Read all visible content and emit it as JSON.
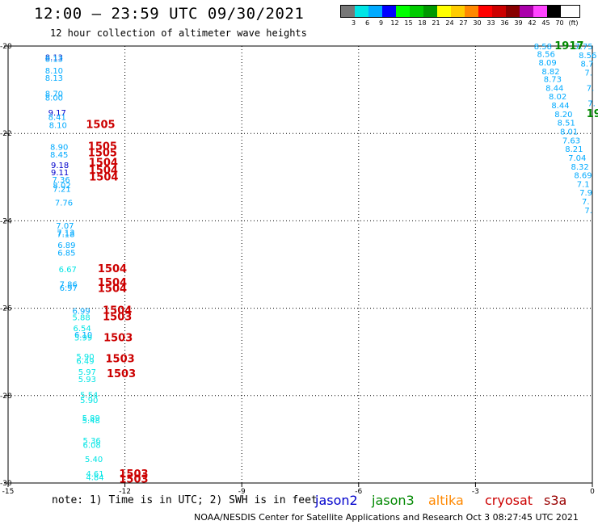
{
  "header": {
    "title": "12:00 – 23:59 UTC 09/30/2021",
    "subtitle": "12 hour collection of altimeter wave heights"
  },
  "legend": {
    "unit": "(ft)",
    "labels": [
      "3",
      "6",
      "9",
      "12",
      "15",
      "18",
      "21",
      "24",
      "27",
      "30",
      "33",
      "36",
      "39",
      "42",
      "45",
      "70"
    ],
    "colors": [
      "#777777",
      "#00e5e5",
      "#00aaff",
      "#0000ff",
      "#00ff00",
      "#00cc00",
      "#009900",
      "#ffff00",
      "#ffcc00",
      "#ff8800",
      "#ff0000",
      "#cc0000",
      "#880000",
      "#aa00aa",
      "#ff44ff",
      "#000000"
    ]
  },
  "axes": {
    "lon_labels": [
      "-15",
      "-12",
      "-9",
      "-6",
      "-3",
      "0"
    ],
    "lat_labels": [
      "-20",
      "-22",
      "-24",
      "-26",
      "-28",
      "-30"
    ]
  },
  "footer": {
    "note": "note:  1) Time is in UTC; 2) SWH is in feet",
    "credit": "NOAA/NESDIS Center for Satellite Applications and Research    Oct  3 08:27:45 UTC 2021"
  },
  "satellites": [
    {
      "name": "jason2",
      "color": "#0000cc"
    },
    {
      "name": "jason3",
      "color": "#008800"
    },
    {
      "name": "altika",
      "color": "#ff8800"
    },
    {
      "name": "cryosat",
      "color": "#cc0000"
    },
    {
      "name": "s3a",
      "color": "#990000"
    }
  ],
  "observations": {
    "track_left": [
      {
        "v": "8.13",
        "lat": -20.25,
        "lon": -14.05,
        "c": "#0033cc"
      },
      {
        "v": "8.13",
        "lat": -20.29,
        "lon": -14.05,
        "c": "#00aaff"
      },
      {
        "v": "8.10",
        "lat": -20.55,
        "lon": -14.05,
        "c": "#00aaff"
      },
      {
        "v": "8.13",
        "lat": -20.72,
        "lon": -14.05,
        "c": "#00aaff"
      },
      {
        "v": "8.70",
        "lat": -21.08,
        "lon": -14.05,
        "c": "#00aaff"
      },
      {
        "v": "8.00",
        "lat": -21.17,
        "lon": -14.05,
        "c": "#00aaff"
      },
      {
        "v": "9.17",
        "lat": -21.52,
        "lon": -13.97,
        "c": "#0000cc"
      },
      {
        "v": "8.41",
        "lat": -21.62,
        "lon": -13.97,
        "c": "#00aaff"
      },
      {
        "v": "8.10",
        "lat": -21.8,
        "lon": -13.95,
        "c": "#00aaff"
      },
      {
        "v": "8.90",
        "lat": -22.3,
        "lon": -13.92,
        "c": "#00aaff"
      },
      {
        "v": "8.45",
        "lat": -22.48,
        "lon": -13.92,
        "c": "#00aaff"
      },
      {
        "v": "9.18",
        "lat": -22.72,
        "lon": -13.9,
        "c": "#0000cc"
      },
      {
        "v": "9.11",
        "lat": -22.88,
        "lon": -13.9,
        "c": "#0000cc"
      },
      {
        "v": "7.36",
        "lat": -23.05,
        "lon": -13.87,
        "c": "#00aaff"
      },
      {
        "v": "8.02",
        "lat": -23.18,
        "lon": -13.85,
        "c": "#00aaff"
      },
      {
        "v": "7.21",
        "lat": -23.26,
        "lon": -13.85,
        "c": "#00aaff"
      },
      {
        "v": "7.76",
        "lat": -23.58,
        "lon": -13.8,
        "c": "#00aaff"
      },
      {
        "v": "7.07",
        "lat": -24.1,
        "lon": -13.77,
        "c": "#00aaff"
      },
      {
        "v": "7.13",
        "lat": -24.26,
        "lon": -13.75,
        "c": "#00aaff"
      },
      {
        "v": "7.18",
        "lat": -24.3,
        "lon": -13.75,
        "c": "#00aaff"
      },
      {
        "v": "6.89",
        "lat": -24.55,
        "lon": -13.73,
        "c": "#00aaff"
      },
      {
        "v": "6.85",
        "lat": -24.72,
        "lon": -13.73,
        "c": "#00aaff"
      },
      {
        "v": "6.67",
        "lat": -25.1,
        "lon": -13.7,
        "c": "#00e5e5"
      },
      {
        "v": "7.86",
        "lat": -25.44,
        "lon": -13.68,
        "c": "#00aaff"
      },
      {
        "v": "6.97",
        "lat": -25.53,
        "lon": -13.68,
        "c": "#00aaff"
      },
      {
        "v": "6.99",
        "lat": -26.05,
        "lon": -13.35,
        "c": "#00aaff"
      },
      {
        "v": "5.88",
        "lat": -26.2,
        "lon": -13.35,
        "c": "#00e5e5"
      },
      {
        "v": "6.54",
        "lat": -26.45,
        "lon": -13.33,
        "c": "#00e5e5"
      },
      {
        "v": "6.10",
        "lat": -26.6,
        "lon": -13.3,
        "c": "#00aaff"
      },
      {
        "v": "5.99",
        "lat": -26.66,
        "lon": -13.3,
        "c": "#00e5e5"
      },
      {
        "v": "5.90",
        "lat": -27.1,
        "lon": -13.25,
        "c": "#00e5e5"
      },
      {
        "v": "6.49",
        "lat": -27.2,
        "lon": -13.25,
        "c": "#00e5e5"
      },
      {
        "v": "5.97",
        "lat": -27.45,
        "lon": -13.2,
        "c": "#00e5e5"
      },
      {
        "v": "5.93",
        "lat": -27.62,
        "lon": -13.2,
        "c": "#00e5e5"
      },
      {
        "v": "5.54",
        "lat": -27.98,
        "lon": -13.15,
        "c": "#00e5e5"
      },
      {
        "v": "5.90",
        "lat": -28.1,
        "lon": -13.15,
        "c": "#00e5e5"
      },
      {
        "v": "5.89",
        "lat": -28.5,
        "lon": -13.1,
        "c": "#00e5e5"
      },
      {
        "v": "5.48",
        "lat": -28.56,
        "lon": -13.1,
        "c": "#00e5e5"
      },
      {
        "v": "5.36",
        "lat": -29.02,
        "lon": -13.08,
        "c": "#00e5e5"
      },
      {
        "v": "6.08",
        "lat": -29.12,
        "lon": -13.08,
        "c": "#00e5e5"
      },
      {
        "v": "5.40",
        "lat": -29.45,
        "lon": -13.03,
        "c": "#00e5e5"
      },
      {
        "v": "4.61",
        "lat": -29.78,
        "lon": -13.0,
        "c": "#00e5e5"
      },
      {
        "v": "4.84",
        "lat": -29.86,
        "lon": -13.0,
        "c": "#00e5e5"
      }
    ],
    "track_red": [
      {
        "v": "1505",
        "lat": -21.8,
        "lon": -13.0
      },
      {
        "v": "1505",
        "lat": -22.3,
        "lon": -12.95
      },
      {
        "v": "1505",
        "lat": -22.45,
        "lon": -12.95
      },
      {
        "v": "1504",
        "lat": -22.67,
        "lon": -12.93
      },
      {
        "v": "1504",
        "lat": -22.85,
        "lon": -12.93
      },
      {
        "v": "1504",
        "lat": -23.0,
        "lon": -12.92
      },
      {
        "v": "1504",
        "lat": -25.1,
        "lon": -12.7
      },
      {
        "v": "1504",
        "lat": -25.42,
        "lon": -12.7
      },
      {
        "v": "1504",
        "lat": -25.55,
        "lon": -12.7
      },
      {
        "v": "1504",
        "lat": -26.05,
        "lon": -12.57
      },
      {
        "v": "1503",
        "lat": -26.2,
        "lon": -12.57
      },
      {
        "v": "1503",
        "lat": -26.68,
        "lon": -12.55
      },
      {
        "v": "1503",
        "lat": -27.16,
        "lon": -12.5
      },
      {
        "v": "1503",
        "lat": -27.5,
        "lon": -12.47
      },
      {
        "v": "1503",
        "lat": -29.8,
        "lon": -12.15
      },
      {
        "v": "1503",
        "lat": -29.92,
        "lon": -12.15
      }
    ],
    "track_right": [
      {
        "v": "8.58",
        "lat": -20.0,
        "lon": -1.5
      },
      {
        "v": "8.56",
        "lat": -20.18,
        "lon": -1.42
      },
      {
        "v": "8.09",
        "lat": -20.37,
        "lon": -1.38
      },
      {
        "v": "8.82",
        "lat": -20.57,
        "lon": -1.3
      },
      {
        "v": "8.73",
        "lat": -20.75,
        "lon": -1.25
      },
      {
        "v": "8.44",
        "lat": -20.95,
        "lon": -1.2
      },
      {
        "v": "8.02",
        "lat": -21.15,
        "lon": -1.12
      },
      {
        "v": "8.44",
        "lat": -21.35,
        "lon": -1.05
      },
      {
        "v": "8.20",
        "lat": -21.55,
        "lon": -0.97
      },
      {
        "v": "8.51",
        "lat": -21.75,
        "lon": -0.9
      },
      {
        "v": "8.01",
        "lat": -21.95,
        "lon": -0.83
      },
      {
        "v": "7.63",
        "lat": -22.15,
        "lon": -0.77
      },
      {
        "v": "8.21",
        "lat": -22.35,
        "lon": -0.7
      },
      {
        "v": "7.04",
        "lat": -22.55,
        "lon": -0.62
      },
      {
        "v": "8.32",
        "lat": -22.75,
        "lon": -0.55
      },
      {
        "v": "8.69",
        "lat": -22.95,
        "lon": -0.47
      },
      {
        "v": "7.1",
        "lat": -23.15,
        "lon": -0.4
      },
      {
        "v": "7.9",
        "lat": -23.35,
        "lon": -0.33
      },
      {
        "v": "7.",
        "lat": -23.55,
        "lon": -0.27
      },
      {
        "v": "7.",
        "lat": -23.75,
        "lon": -0.2
      },
      {
        "v": "7.75",
        "lat": -20.0,
        "lon": -0.45
      },
      {
        "v": "8.56",
        "lat": -20.2,
        "lon": -0.35
      },
      {
        "v": "8.7",
        "lat": -20.4,
        "lon": -0.3
      },
      {
        "v": "7.",
        "lat": -20.6,
        "lon": -0.2
      },
      {
        "v": "7.",
        "lat": -20.95,
        "lon": -0.15
      },
      {
        "v": "7.",
        "lat": -21.3,
        "lon": -0.12
      }
    ],
    "track_green": [
      {
        "v": "1917",
        "lat": -20.0,
        "lon": -0.97
      },
      {
        "v": "19",
        "lat": -21.55,
        "lon": -0.15
      }
    ]
  }
}
